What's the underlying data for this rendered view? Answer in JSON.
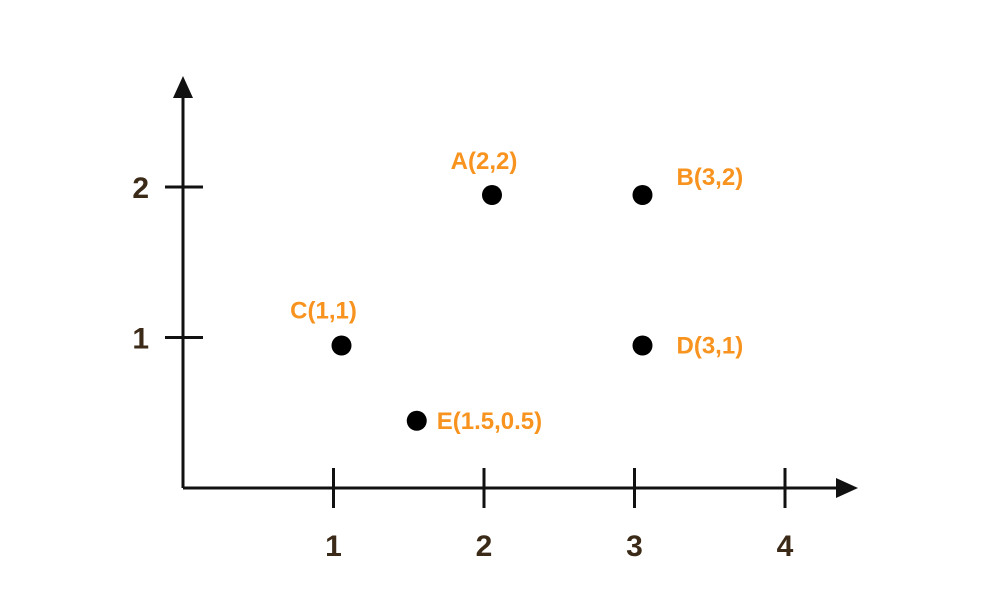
{
  "chart_data": {
    "type": "scatter",
    "title": "",
    "xlabel": "",
    "ylabel": "",
    "xlim": [
      0,
      4.5
    ],
    "ylim": [
      0,
      2.7
    ],
    "x_ticks": [
      1,
      2,
      3,
      4
    ],
    "y_ticks": [
      1,
      2
    ],
    "x_tick_labels": [
      "1",
      "2",
      "3",
      "4"
    ],
    "y_tick_labels": [
      "1",
      "2"
    ],
    "grid": false,
    "points": [
      {
        "label": "A(2,2)",
        "x": 2,
        "y": 2
      },
      {
        "label": "B(3,2)",
        "x": 3,
        "y": 2
      },
      {
        "label": "C(1,1)",
        "x": 1,
        "y": 1
      },
      {
        "label": "D(3,1)",
        "x": 3,
        "y": 1
      },
      {
        "label": "E(1.5,0.5)",
        "x": 1.5,
        "y": 0.5
      }
    ]
  },
  "colors": {
    "axis": "#111111",
    "tick_label": "#3a2a17",
    "marker": "#000000",
    "point_label": "#f7931e"
  }
}
